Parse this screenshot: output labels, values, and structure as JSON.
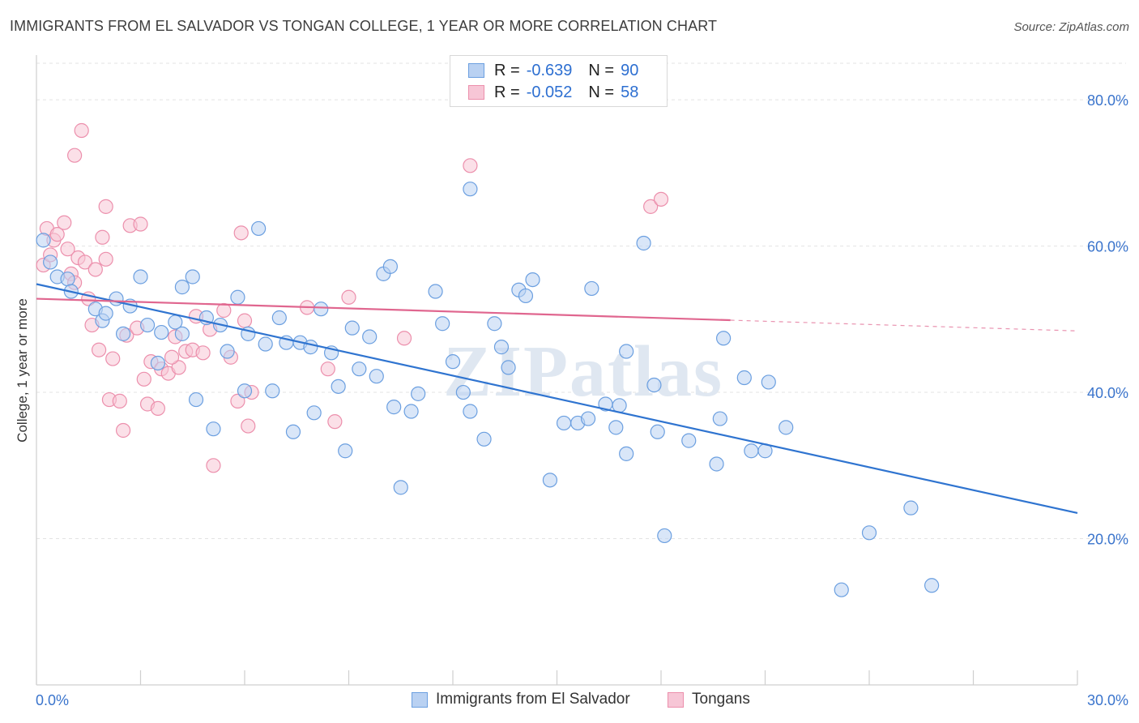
{
  "header": {
    "title": "IMMIGRANTS FROM EL SALVADOR VS TONGAN COLLEGE, 1 YEAR OR MORE CORRELATION CHART",
    "source": "Source: ZipAtlas.com"
  },
  "watermark": "ZIPatlas",
  "legend": {
    "rows": [
      {
        "r_label": "R =",
        "r_value": "-0.639",
        "n_label": "N =",
        "n_value": "90"
      },
      {
        "r_label": "R =",
        "r_value": "-0.052",
        "n_label": "N =",
        "n_value": "58"
      }
    ]
  },
  "colors": {
    "series1_fill": "#b9d1f2",
    "series1_stroke": "#6b9fe0",
    "series1_line": "#2f74d0",
    "series2_fill": "#f7c6d6",
    "series2_stroke": "#ec8fac",
    "series2_line": "#e0668f",
    "tick_label": "#3a74cc",
    "grid": "#e3e3e3"
  },
  "chart_data": {
    "type": "scatter",
    "title": "IMMIGRANTS FROM EL SALVADOR VS TONGAN COLLEGE, 1 YEAR OR MORE CORRELATION CHART",
    "xlabel": "",
    "ylabel": "College, 1 year or more",
    "xlim": [
      0,
      30
    ],
    "ylim": [
      0,
      85
    ],
    "x_tick_labels": [
      "0.0%",
      "30.0%"
    ],
    "y_tick_labels": [
      "20.0%",
      "40.0%",
      "60.0%",
      "80.0%"
    ],
    "y_ticks": [
      20,
      40,
      60,
      80
    ],
    "grid": true,
    "legend_position": "bottom",
    "series": [
      {
        "name": "Immigrants from El Salvador",
        "r": -0.639,
        "n": 90,
        "trend": {
          "x0": 0,
          "y0": 54.8,
          "x1": 30,
          "y1": 23.5,
          "solid_until": 30
        },
        "points": [
          [
            0.2,
            60.8
          ],
          [
            0.4,
            57.8
          ],
          [
            0.6,
            55.8
          ],
          [
            0.9,
            55.5
          ],
          [
            1.0,
            53.8
          ],
          [
            1.7,
            51.4
          ],
          [
            1.9,
            49.8
          ],
          [
            2.0,
            50.8
          ],
          [
            2.5,
            48.0
          ],
          [
            2.3,
            52.8
          ],
          [
            2.7,
            51.8
          ],
          [
            3.0,
            55.8
          ],
          [
            3.2,
            49.2
          ],
          [
            3.5,
            44.0
          ],
          [
            3.6,
            48.2
          ],
          [
            4.0,
            49.6
          ],
          [
            4.2,
            48.0
          ],
          [
            4.2,
            54.4
          ],
          [
            4.5,
            55.8
          ],
          [
            4.6,
            39.0
          ],
          [
            4.9,
            50.2
          ],
          [
            5.1,
            35.0
          ],
          [
            5.3,
            49.2
          ],
          [
            5.5,
            45.6
          ],
          [
            5.8,
            53.0
          ],
          [
            6.0,
            40.2
          ],
          [
            6.1,
            48.0
          ],
          [
            6.4,
            62.4
          ],
          [
            6.6,
            46.6
          ],
          [
            6.8,
            40.2
          ],
          [
            7.0,
            50.2
          ],
          [
            7.2,
            46.8
          ],
          [
            7.4,
            34.6
          ],
          [
            7.6,
            46.8
          ],
          [
            7.9,
            46.2
          ],
          [
            8.0,
            37.2
          ],
          [
            8.2,
            51.4
          ],
          [
            8.5,
            45.4
          ],
          [
            8.7,
            40.8
          ],
          [
            8.9,
            32.0
          ],
          [
            9.1,
            48.8
          ],
          [
            9.3,
            43.2
          ],
          [
            9.6,
            47.6
          ],
          [
            9.8,
            42.2
          ],
          [
            10.0,
            56.2
          ],
          [
            10.2,
            57.2
          ],
          [
            10.3,
            38.0
          ],
          [
            10.5,
            27.0
          ],
          [
            10.8,
            37.4
          ],
          [
            11.0,
            39.8
          ],
          [
            11.5,
            53.8
          ],
          [
            11.7,
            49.4
          ],
          [
            12.0,
            44.2
          ],
          [
            12.3,
            40.0
          ],
          [
            12.5,
            67.8
          ],
          [
            12.5,
            37.4
          ],
          [
            12.9,
            33.6
          ],
          [
            13.2,
            49.4
          ],
          [
            13.4,
            46.2
          ],
          [
            13.6,
            43.4
          ],
          [
            13.9,
            54.0
          ],
          [
            14.1,
            53.2
          ],
          [
            14.3,
            55.4
          ],
          [
            14.8,
            28.0
          ],
          [
            15.2,
            35.8
          ],
          [
            15.6,
            35.8
          ],
          [
            15.9,
            36.4
          ],
          [
            16.0,
            54.2
          ],
          [
            16.4,
            38.4
          ],
          [
            16.7,
            35.2
          ],
          [
            17.0,
            31.6
          ],
          [
            17.0,
            45.6
          ],
          [
            17.5,
            60.4
          ],
          [
            17.8,
            41.0
          ],
          [
            17.9,
            34.6
          ],
          [
            18.1,
            20.4
          ],
          [
            18.8,
            33.4
          ],
          [
            19.6,
            30.2
          ],
          [
            19.7,
            36.4
          ],
          [
            19.8,
            47.4
          ],
          [
            20.4,
            42.0
          ],
          [
            20.6,
            32.0
          ],
          [
            21.0,
            32.0
          ],
          [
            21.1,
            41.4
          ],
          [
            21.6,
            35.2
          ],
          [
            23.2,
            13.0
          ],
          [
            24.0,
            20.8
          ],
          [
            25.2,
            24.2
          ],
          [
            25.8,
            13.6
          ],
          [
            16.8,
            38.2
          ]
        ]
      },
      {
        "name": "Tongans",
        "r": -0.052,
        "n": 58,
        "trend": {
          "x0": 0,
          "y0": 52.8,
          "x1": 30,
          "y1": 48.4,
          "solid_until": 20
        },
        "points": [
          [
            0.3,
            62.4
          ],
          [
            0.2,
            57.4
          ],
          [
            0.4,
            58.8
          ],
          [
            0.5,
            60.8
          ],
          [
            0.6,
            61.6
          ],
          [
            0.8,
            63.2
          ],
          [
            0.9,
            59.6
          ],
          [
            1.0,
            56.2
          ],
          [
            1.1,
            55.0
          ],
          [
            1.2,
            58.4
          ],
          [
            1.3,
            75.8
          ],
          [
            1.1,
            72.4
          ],
          [
            1.4,
            57.8
          ],
          [
            1.5,
            52.8
          ],
          [
            1.6,
            49.2
          ],
          [
            1.7,
            56.8
          ],
          [
            1.8,
            45.8
          ],
          [
            1.9,
            61.2
          ],
          [
            2.0,
            65.4
          ],
          [
            2.0,
            58.2
          ],
          [
            2.1,
            39.0
          ],
          [
            2.2,
            44.6
          ],
          [
            2.4,
            38.8
          ],
          [
            2.5,
            34.8
          ],
          [
            2.6,
            47.8
          ],
          [
            2.7,
            62.8
          ],
          [
            2.9,
            48.8
          ],
          [
            3.0,
            63.0
          ],
          [
            3.1,
            41.8
          ],
          [
            3.2,
            38.4
          ],
          [
            3.3,
            44.2
          ],
          [
            3.5,
            37.8
          ],
          [
            3.6,
            43.2
          ],
          [
            3.8,
            42.6
          ],
          [
            4.0,
            47.6
          ],
          [
            4.1,
            43.4
          ],
          [
            4.3,
            45.6
          ],
          [
            4.5,
            45.8
          ],
          [
            4.6,
            50.4
          ],
          [
            4.8,
            45.4
          ],
          [
            5.0,
            48.6
          ],
          [
            5.1,
            30.0
          ],
          [
            5.4,
            51.2
          ],
          [
            5.6,
            44.8
          ],
          [
            5.8,
            38.8
          ],
          [
            5.9,
            61.8
          ],
          [
            6.0,
            49.8
          ],
          [
            6.1,
            35.4
          ],
          [
            6.2,
            40.0
          ],
          [
            7.8,
            51.6
          ],
          [
            8.4,
            43.2
          ],
          [
            8.6,
            36.0
          ],
          [
            9.0,
            53.0
          ],
          [
            10.6,
            47.4
          ],
          [
            12.5,
            71.0
          ],
          [
            17.7,
            65.4
          ],
          [
            18.0,
            66.4
          ],
          [
            3.9,
            44.8
          ]
        ]
      }
    ]
  },
  "bottom_legend": {
    "items": [
      "Immigrants from El Salvador",
      "Tongans"
    ]
  }
}
